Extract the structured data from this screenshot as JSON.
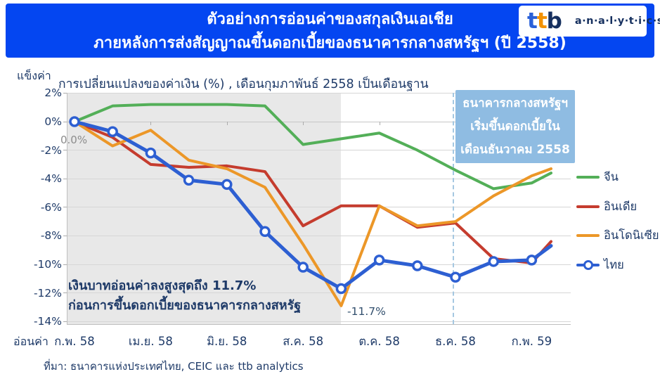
{
  "header": {
    "title_line1": "ตัวอย่างการอ่อนค่าของสกุลเงินเอเชีย",
    "title_line2": "ภายหลังการส่งสัญญาณขึ้นดอกเบี้ยของธนาคารกลางสหรัฐฯ (ปี 2558)",
    "banner_color": "#0446F1"
  },
  "logo": {
    "t1": "t",
    "t2": "t",
    "t3": "b",
    "suffix": "a·n·a·l·y·t·i·c·s"
  },
  "chart_data": {
    "type": "line",
    "title": "การเปลี่ยนแปลงของค่าเงิน (%) , เดือนกุมภาพันธ์ 2558 เป็นเดือนฐาน",
    "y_axis_top_label": "แข็งค่า",
    "y_axis_bottom_label": "อ่อนค่า",
    "ylim": [
      -14,
      2
    ],
    "grid": true,
    "legend_position": "right",
    "y_ticks": [
      "2%",
      "0%",
      "-2%",
      "-4%",
      "-6%",
      "-8%",
      "-10%",
      "-12%",
      "-14%"
    ],
    "x_tick_labels": [
      "ก.พ. 58",
      "เม.ย. 58",
      "มิ.ย. 58",
      "ส.ค. 58",
      "ต.ค. 58",
      "ธ.ค. 58",
      "ก.พ. 59"
    ],
    "num_points": 14,
    "series": [
      {
        "name": "จีน",
        "color": "#53AF58",
        "marker": false,
        "values": [
          0.0,
          1.1,
          1.2,
          1.2,
          1.2,
          1.1,
          -1.6,
          -1.2,
          -0.8,
          -2.0,
          -3.4,
          -4.7,
          -4.3,
          -3.6
        ]
      },
      {
        "name": "อินเดีย",
        "color": "#C53C2E",
        "marker": false,
        "values": [
          0.0,
          -1.1,
          -3.0,
          -3.2,
          -3.1,
          -3.5,
          -7.3,
          -5.9,
          -5.9,
          -7.4,
          -7.1,
          -9.6,
          -9.9,
          -8.4
        ]
      },
      {
        "name": "อินโดนิเซีย",
        "color": "#EC9728",
        "marker": false,
        "values": [
          0.0,
          -1.7,
          -0.6,
          -2.7,
          -3.3,
          -4.6,
          -8.6,
          -12.9,
          -5.9,
          -7.3,
          -7.0,
          -5.2,
          -3.8,
          -3.3
        ]
      },
      {
        "name": "ไทย",
        "color": "#2D5FD2",
        "marker": true,
        "values": [
          0.0,
          -0.7,
          -2.2,
          -4.1,
          -4.4,
          -7.7,
          -10.2,
          -11.7,
          -9.7,
          -10.1,
          -10.9,
          -9.8,
          -9.7,
          -8.7
        ]
      }
    ],
    "annotations": {
      "start_value_label": "0.0%",
      "min_value_label": "-11.7%",
      "note_line1": "เงินบาทอ่อนค่าลงสูงสุดถึง 11.7%",
      "note_line2": "ก่อนการขึ้นดอกเบี้ยของธนาคารกลางสหรัฐ",
      "fed_box_line1": "ธนาคารกลางสหรัฐฯ",
      "fed_box_line2": "เริ่มขึ้นดอกเบี้ยใน",
      "fed_box_line3": "เดือนธันวาคม 2558",
      "fed_box_color": "#8FBCE2",
      "dashed_line_color": "#A4C7E1",
      "shaded_band_color": "#E8E8E8"
    }
  },
  "source": "ที่มา: ธนาคารแห่งประเทศไทย, CEIC และ ttb analytics"
}
